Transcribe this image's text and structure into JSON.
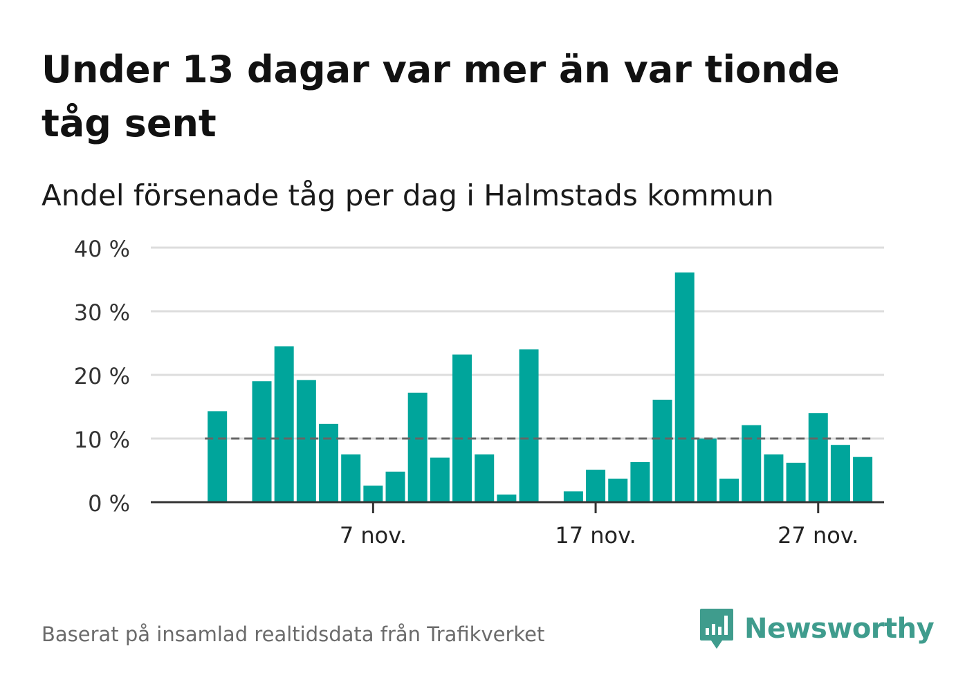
{
  "header": {
    "title": "Under 13 dagar var mer än var tionde tåg sent",
    "subtitle": "Andel försenade tåg per dag i Halmstads kommun"
  },
  "footer": {
    "source": "Baserat på insamlad realtidsdata från Trafikverket",
    "brand": "Newsworthy",
    "logo_icon": "newsworthy-chart-bubble-icon"
  },
  "colors": {
    "bar": "#00a59b",
    "reference_line": "#666666",
    "grid": "#dddddd",
    "axis": "#333333",
    "brand": "#3f9c8d"
  },
  "chart_data": {
    "type": "bar",
    "title": "Andel försenade tåg per dag i Halmstads kommun",
    "xlabel": "",
    "ylabel": "",
    "ylim": [
      0,
      40
    ],
    "y_ticks": [
      0,
      10,
      20,
      30,
      40
    ],
    "y_tick_labels": [
      "0 %",
      "10 %",
      "20 %",
      "30 %",
      "40 %"
    ],
    "x_tick_labels": [
      "7 nov.",
      "17 nov.",
      "27 nov."
    ],
    "x_ticks": [
      "2023-11-07",
      "2023-11-17",
      "2023-11-27"
    ],
    "grid": true,
    "reference_line": {
      "value": 10,
      "style": "dashed"
    },
    "x": [
      "2023-10-30",
      "2023-10-31",
      "2023-11-01",
      "2023-11-02",
      "2023-11-03",
      "2023-11-04",
      "2023-11-05",
      "2023-11-06",
      "2023-11-07",
      "2023-11-08",
      "2023-11-09",
      "2023-11-10",
      "2023-11-11",
      "2023-11-12",
      "2023-11-13",
      "2023-11-14",
      "2023-11-15",
      "2023-11-16",
      "2023-11-17",
      "2023-11-18",
      "2023-11-19",
      "2023-11-20",
      "2023-11-21",
      "2023-11-22",
      "2023-11-23",
      "2023-11-24",
      "2023-11-25",
      "2023-11-26",
      "2023-11-27",
      "2023-11-28",
      "2023-11-29",
      "2023-11-30"
    ],
    "values": [
      null,
      14.3,
      null,
      19.0,
      24.5,
      19.2,
      12.3,
      7.5,
      2.6,
      4.8,
      17.2,
      7.0,
      23.2,
      7.5,
      1.2,
      24.0,
      null,
      1.7,
      5.1,
      3.7,
      6.3,
      16.1,
      36.1,
      10.0,
      3.7,
      12.1,
      7.5,
      6.2,
      14.0,
      9.0,
      7.1,
      null
    ]
  }
}
